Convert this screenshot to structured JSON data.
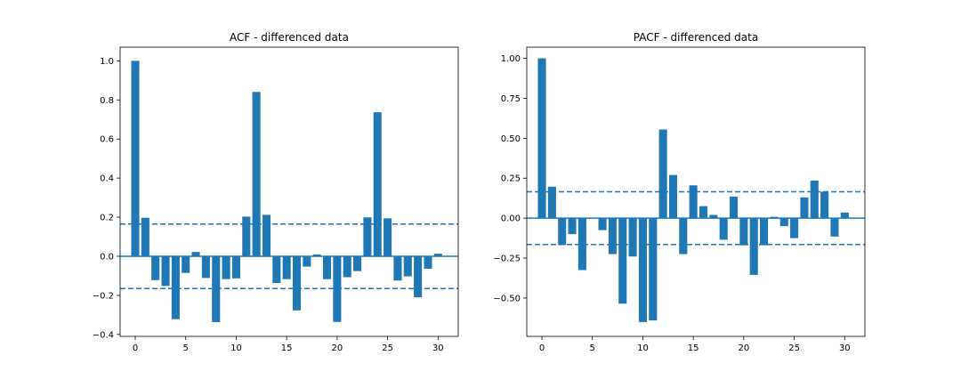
{
  "chart_data": [
    {
      "type": "bar",
      "title": "ACF - differenced data",
      "xlabel": "",
      "ylabel": "",
      "xlim": [
        -1.5,
        32
      ],
      "ylim": [
        -0.41,
        1.07
      ],
      "x_ticks": [
        0,
        5,
        10,
        15,
        20,
        25,
        30
      ],
      "y_ticks": [
        -0.4,
        -0.2,
        0.0,
        0.2,
        0.4,
        0.6,
        0.8,
        1.0
      ],
      "y_tick_labels": [
        "−0.4",
        "−0.2",
        "0.0",
        "0.2",
        "0.4",
        "0.6",
        "0.8",
        "1.0"
      ],
      "grid": false,
      "x": [
        0,
        1,
        2,
        3,
        4,
        5,
        6,
        7,
        8,
        9,
        10,
        11,
        12,
        13,
        14,
        15,
        16,
        17,
        18,
        19,
        20,
        21,
        22,
        23,
        24,
        25,
        26,
        27,
        28,
        29,
        30
      ],
      "values": [
        1.0,
        0.197,
        -0.122,
        -0.152,
        -0.322,
        -0.085,
        0.022,
        -0.111,
        -0.337,
        -0.117,
        -0.113,
        0.203,
        0.841,
        0.212,
        -0.137,
        -0.117,
        -0.277,
        -0.053,
        0.009,
        -0.117,
        -0.336,
        -0.107,
        -0.076,
        0.199,
        0.737,
        0.194,
        -0.124,
        -0.103,
        -0.21,
        -0.064,
        0.013
      ],
      "confidence_band": 0.165,
      "bar_color": "#1f77b4"
    },
    {
      "type": "bar",
      "title": "PACF - differenced data",
      "xlabel": "",
      "ylabel": "",
      "xlim": [
        -1.5,
        32
      ],
      "ylim": [
        -0.74,
        1.07
      ],
      "x_ticks": [
        0,
        5,
        10,
        15,
        20,
        25,
        30
      ],
      "y_ticks": [
        -0.5,
        -0.25,
        0.0,
        0.25,
        0.5,
        0.75,
        1.0
      ],
      "y_tick_labels": [
        "−0.50",
        "−0.25",
        "0.00",
        "0.25",
        "0.50",
        "0.75",
        "1.00"
      ],
      "grid": false,
      "x": [
        0,
        1,
        2,
        3,
        4,
        5,
        6,
        7,
        8,
        9,
        10,
        11,
        12,
        13,
        14,
        15,
        16,
        17,
        18,
        19,
        20,
        21,
        22,
        23,
        24,
        25,
        26,
        27,
        28,
        29,
        30
      ],
      "values": [
        1.0,
        0.197,
        -0.168,
        -0.1,
        -0.325,
        0.0,
        -0.075,
        -0.225,
        -0.535,
        -0.24,
        -0.65,
        -0.64,
        0.555,
        0.27,
        -0.225,
        0.205,
        0.075,
        0.02,
        -0.135,
        0.135,
        -0.17,
        -0.355,
        -0.17,
        0.008,
        -0.05,
        -0.125,
        0.13,
        0.235,
        0.165,
        -0.115,
        0.035
      ],
      "confidence_band": 0.165,
      "bar_color": "#1f77b4"
    }
  ]
}
